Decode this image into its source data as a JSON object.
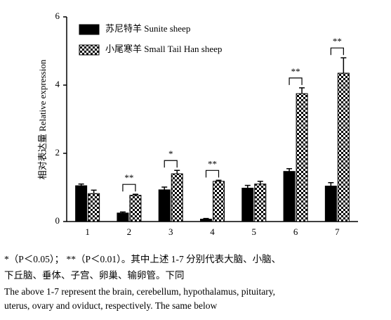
{
  "chart_data": {
    "type": "grouped_bar_errors",
    "y_label": "相对表达量 Relative expression",
    "categories": [
      "1",
      "2",
      "3",
      "4",
      "5",
      "6",
      "7"
    ],
    "series": [
      {
        "name": "苏尼特羊 Sunite sheep",
        "color": "#000000",
        "pattern": "solid",
        "values": [
          1.05,
          0.25,
          0.93,
          0.07,
          0.98,
          1.47,
          1.04
        ],
        "errors": [
          0.05,
          0.03,
          0.08,
          0.02,
          0.08,
          0.08,
          0.1
        ]
      },
      {
        "name": "小尾寒羊 Small Tail Han sheep",
        "color": "#000000",
        "pattern": "checker",
        "values": [
          0.82,
          0.77,
          1.4,
          1.18,
          1.1,
          3.75,
          4.35
        ],
        "errors": [
          0.1,
          0.03,
          0.1,
          0.03,
          0.08,
          0.17,
          0.45
        ]
      }
    ],
    "significance": [
      {
        "category": "2",
        "label": "**"
      },
      {
        "category": "3",
        "label": "*"
      },
      {
        "category": "4",
        "label": "**"
      },
      {
        "category": "6",
        "label": "**"
      },
      {
        "category": "7",
        "label": "**"
      }
    ],
    "ylim": [
      0,
      6
    ],
    "yticks": [
      0,
      2,
      4,
      6
    ],
    "legend": "upper left",
    "caption_cn": [
      "*（P＜0.05）；  **（P＜0.01）。其中上述 1-7 分别代表大脑、小脑、",
      "下丘脑、垂体、子宫、卵巢、输卵管。下同"
    ],
    "caption_en": [
      "The above 1-7 represent the brain, cerebellum, hypothalamus, pituitary,",
      "uterus, ovary and oviduct, respectively. The same below"
    ]
  }
}
